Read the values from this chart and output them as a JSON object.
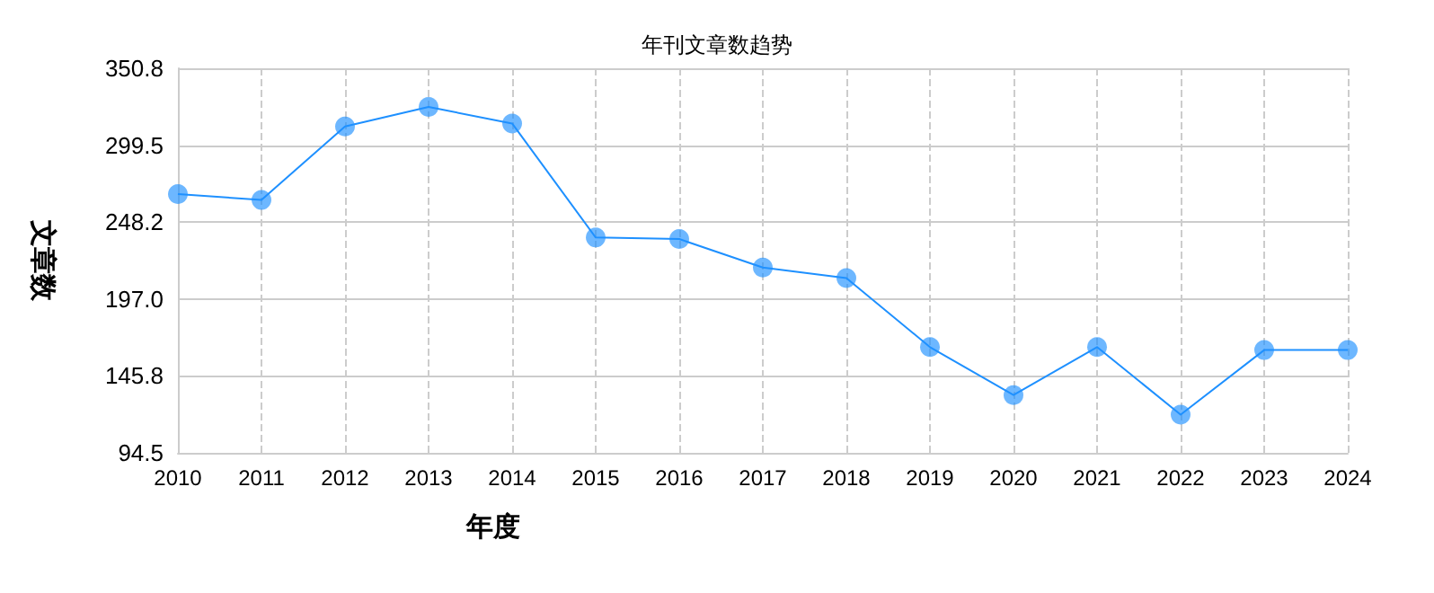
{
  "chart_data": {
    "type": "line",
    "title": "年刊文章数趋势",
    "xlabel": "年度",
    "ylabel": "文章数",
    "categories": [
      "2010",
      "2011",
      "2012",
      "2013",
      "2014",
      "2015",
      "2016",
      "2017",
      "2018",
      "2019",
      "2020",
      "2021",
      "2022",
      "2023",
      "2024"
    ],
    "series": [
      {
        "color": "#1e90ff",
        "values": [
          267,
          263,
          312,
          325,
          314,
          238,
          237,
          218,
          211,
          165,
          133,
          165,
          120,
          163,
          163
        ]
      }
    ],
    "ylim": [
      94.5,
      350.8
    ],
    "yticks": [
      94.5,
      145.8,
      {
        "value": 197,
        "label": "197.0"
      },
      248.2,
      299.5,
      350.8
    ],
    "grid": true,
    "marker": "circle",
    "line_style": "solid"
  }
}
